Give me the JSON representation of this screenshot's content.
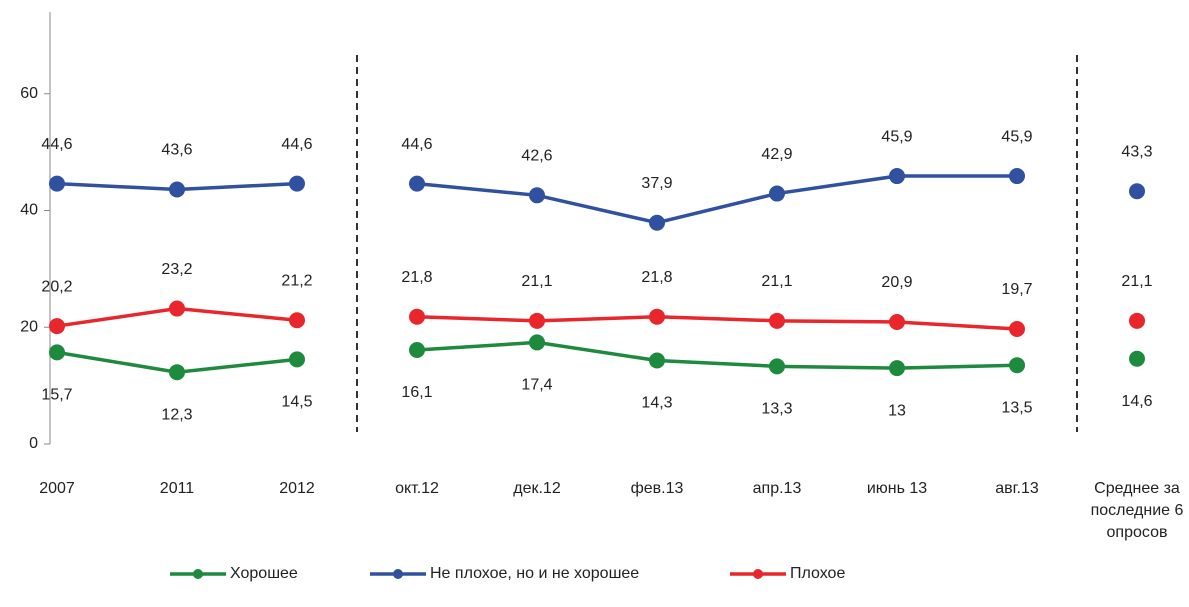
{
  "chart_data": {
    "type": "line",
    "categories": [
      "2007",
      "2011",
      "2012",
      "окт.12",
      "дек.12",
      "фев.13",
      "апр.13",
      "июнь 13",
      "авг.13",
      "Среднее за последние 6 опросов"
    ],
    "series": [
      {
        "name": "Хорошее",
        "color": "#1e8a3e",
        "label_position": "below",
        "values": [
          15.7,
          12.3,
          14.5,
          16.1,
          17.4,
          14.3,
          13.3,
          13,
          13.5,
          14.6
        ],
        "value_labels": [
          "15,7",
          "12,3",
          "14,5",
          "16,1",
          "17,4",
          "14,3",
          "13,3",
          "13",
          "13,5",
          "14,6"
        ]
      },
      {
        "name": "Не плохое, но и не хорошее",
        "color": "#3050a0",
        "label_position": "above",
        "values": [
          44.6,
          43.6,
          44.6,
          44.6,
          42.6,
          37.9,
          42.9,
          45.9,
          45.9,
          43.3
        ],
        "value_labels": [
          "44,6",
          "43,6",
          "44,6",
          "44,6",
          "42,6",
          "37,9",
          "42,9",
          "45,9",
          "45,9",
          "43,3"
        ]
      },
      {
        "name": "Плохое",
        "color": "#e8262b",
        "label_position": "above",
        "values": [
          20.2,
          23.2,
          21.2,
          21.8,
          21.1,
          21.8,
          21.1,
          20.9,
          19.7,
          21.1
        ],
        "value_labels": [
          "20,2",
          "23,2",
          "21,2",
          "21,8",
          "21,1",
          "21,8",
          "21,1",
          "20,9",
          "19,7",
          "21,1"
        ]
      }
    ],
    "ylim": [
      0,
      74
    ],
    "yticks": [
      0,
      20,
      40,
      60
    ],
    "dividers_after": [
      2,
      8
    ],
    "legend": "bottom"
  }
}
